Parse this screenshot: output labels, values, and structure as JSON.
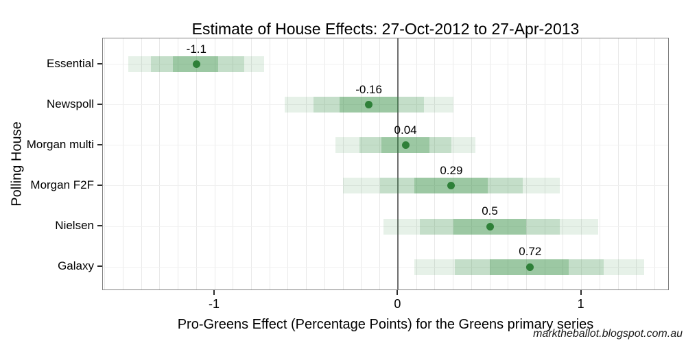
{
  "page": {
    "watermark": "marktheballot.blogspot.com.au"
  },
  "chart_data": {
    "type": "scatter",
    "variant": "point-estimates-with-nested-interval-bands",
    "title": "Estimate of House Effects: 27-Oct-2012 to 27-Apr-2013",
    "xlabel": "Pro-Greens Effect (Percentage Points) for the Greens primary series",
    "ylabel": "Polling House",
    "categories": [
      "Essential",
      "Newspoll",
      "Morgan multi",
      "Morgan F2F",
      "Nielsen",
      "Galaxy"
    ],
    "estimates": [
      -1.1,
      -0.16,
      0.04,
      0.29,
      0.5,
      0.72
    ],
    "point_labels": [
      "-1.1",
      "-0.16",
      "0.04",
      "0.29",
      "0.5",
      "0.72"
    ],
    "intervals": {
      "inner": [
        [
          -1.23,
          -0.98
        ],
        [
          -0.32,
          0.0
        ],
        [
          -0.09,
          0.17
        ],
        [
          0.09,
          0.49
        ],
        [
          0.3,
          0.7
        ],
        [
          0.5,
          0.93
        ]
      ],
      "middle": [
        [
          -1.35,
          -0.84
        ],
        [
          -0.46,
          0.14
        ],
        [
          -0.21,
          0.29
        ],
        [
          -0.1,
          0.68
        ],
        [
          0.12,
          0.88
        ],
        [
          0.31,
          1.12
        ]
      ],
      "outer": [
        [
          -1.47,
          -0.73
        ],
        [
          -0.62,
          0.3
        ],
        [
          -0.34,
          0.42
        ],
        [
          -0.3,
          0.88
        ],
        [
          -0.08,
          1.09
        ],
        [
          0.09,
          1.34
        ]
      ]
    },
    "xticks": [
      -1,
      0,
      1
    ],
    "xtick_labels": [
      "-1",
      "0",
      "1"
    ],
    "xlim": [
      -1.61,
      1.48
    ],
    "minor_grid_step": 0.1,
    "zero_line_x": 0,
    "grid": true,
    "legend": "none"
  },
  "colors": {
    "point": "#2e8038",
    "band_inner_flat": "#a5c9a4",
    "band_middle_flat": "#c8dfc8",
    "band_outer_flat": "#e6f1e6",
    "band_layer_rgba": [
      "rgba(47,139,63,0.12)",
      "rgba(47,139,63,0.18)",
      "rgba(47,139,63,0.27)"
    ],
    "zero_line": "#6e6e6e",
    "grid_vertical": "#e9e9e9",
    "grid_horizontal": "#f0f0f0",
    "panel_border": "#7f7f7f",
    "text": "#000000"
  }
}
